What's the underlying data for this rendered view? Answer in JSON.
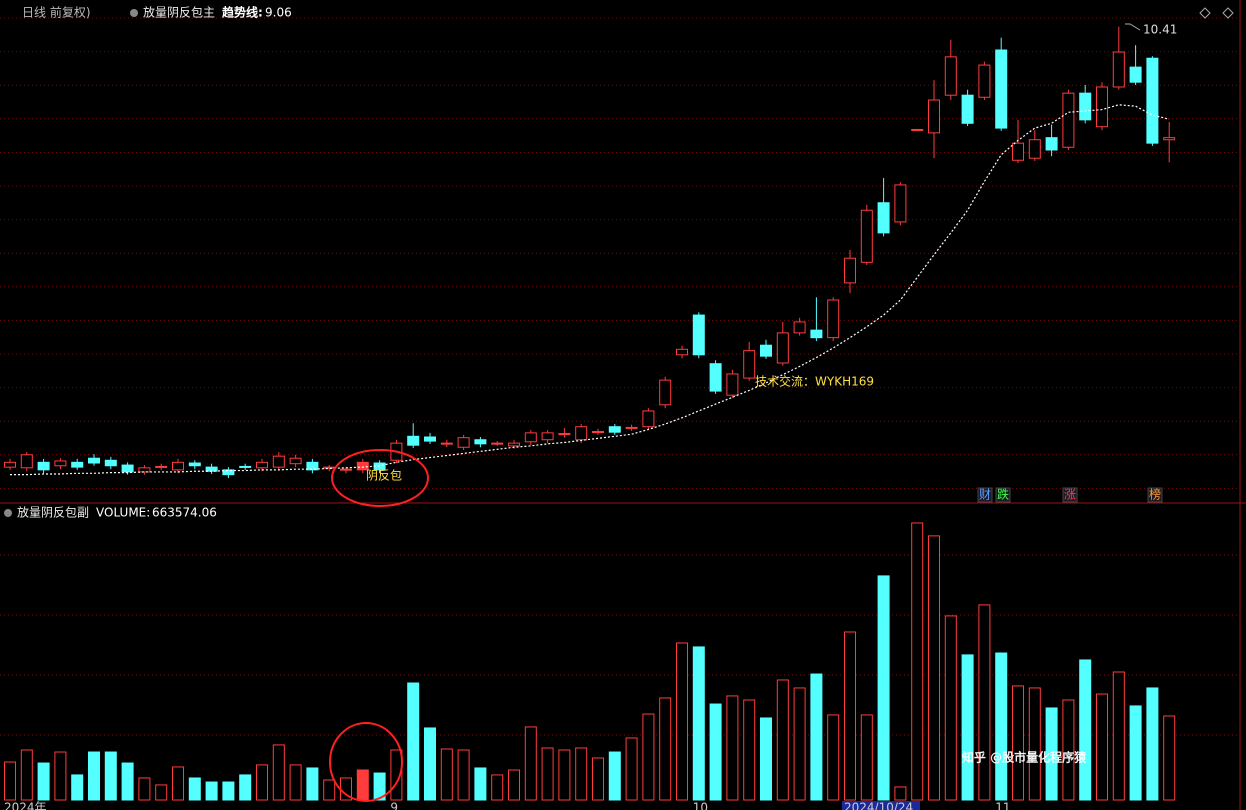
{
  "header": {
    "period": "日线 前复权)",
    "indicator": "放量阴反包主"
  },
  "chart_data": [
    {
      "type": "candlestick",
      "categories": [
        "2024年",
        null,
        null,
        null,
        null,
        null,
        null,
        null,
        null,
        null,
        null,
        null,
        null,
        null,
        null,
        null,
        null,
        null,
        null,
        null,
        null,
        null,
        null,
        "9",
        null,
        null,
        null,
        null,
        null,
        null,
        null,
        null,
        null,
        null,
        null,
        null,
        null,
        null,
        null,
        null,
        null,
        "10",
        null,
        null,
        null,
        null,
        null,
        null,
        null,
        null,
        "2024/10/24",
        null,
        null,
        null,
        null,
        null,
        null,
        null,
        null,
        "11",
        null,
        null,
        null,
        null,
        null,
        null,
        null,
        null,
        null,
        null
      ],
      "open": [
        3.98,
        3.97,
        4.05,
        4.0,
        4.05,
        4.11,
        4.08,
        4.01,
        3.91,
        3.98,
        3.94,
        4.04,
        3.98,
        3.94,
        3.99,
        3.97,
        3.98,
        4.03,
        4.05,
        3.97,
        3.94,
        3.94,
        4.04,
        4.08,
        4.43,
        4.42,
        4.32,
        4.27,
        4.38,
        4.32,
        4.29,
        4.35,
        4.38,
        4.46,
        4.38,
        4.49,
        4.57,
        4.55,
        4.57,
        4.89,
        5.62,
        6.2,
        5.49,
        5.03,
        5.28,
        5.76,
        5.5,
        5.94,
        5.98,
        5.87,
        6.67,
        6.97,
        7.84,
        7.56,
        8.9,
        8.86,
        9.41,
        9.41,
        9.38,
        10.07,
        8.46,
        8.49,
        8.79,
        8.65,
        9.44,
        8.95,
        9.53,
        9.82,
        9.95,
        8.76
      ],
      "high": [
        4.1,
        4.2,
        4.1,
        4.11,
        4.1,
        4.17,
        4.13,
        4.05,
        4.01,
        4.03,
        4.1,
        4.08,
        4.03,
        3.98,
        4.03,
        4.1,
        4.2,
        4.16,
        4.1,
        4.01,
        3.98,
        4.1,
        4.08,
        4.38,
        4.62,
        4.48,
        4.38,
        4.45,
        4.42,
        4.36,
        4.38,
        4.52,
        4.52,
        4.55,
        4.61,
        4.54,
        4.61,
        4.6,
        4.84,
        5.3,
        5.75,
        6.24,
        5.54,
        5.4,
        5.81,
        5.84,
        6.1,
        6.16,
        6.46,
        6.46,
        7.15,
        7.81,
        8.2,
        8.14,
        8.91,
        9.63,
        10.22,
        9.49,
        9.9,
        10.25,
        9.05,
        8.9,
        8.98,
        9.49,
        9.56,
        9.6,
        10.41,
        10.14,
        9.98,
        9.02
      ],
      "low": [
        3.94,
        3.92,
        3.89,
        3.95,
        3.94,
        4.0,
        3.95,
        3.87,
        3.87,
        3.94,
        3.89,
        3.95,
        3.88,
        3.82,
        3.94,
        3.92,
        3.94,
        3.98,
        3.89,
        3.92,
        3.89,
        3.89,
        3.89,
        4.04,
        4.26,
        4.32,
        4.27,
        4.23,
        4.27,
        4.29,
        4.25,
        4.3,
        4.33,
        4.41,
        4.33,
        4.45,
        4.45,
        4.51,
        4.52,
        4.84,
        5.57,
        5.57,
        5.05,
        4.99,
        5.24,
        5.56,
        5.46,
        5.9,
        5.82,
        5.82,
        6.52,
        6.93,
        7.35,
        7.51,
        8.89,
        8.49,
        9.34,
        8.96,
        9.34,
        8.89,
        8.42,
        8.45,
        8.52,
        8.61,
        9.0,
        8.9,
        9.49,
        9.56,
        8.67,
        8.43
      ],
      "close": [
        4.05,
        4.16,
        3.94,
        4.07,
        3.98,
        4.04,
        4.0,
        3.91,
        3.97,
        3.99,
        4.05,
        4.0,
        3.92,
        3.87,
        3.98,
        4.05,
        4.14,
        4.11,
        3.94,
        3.98,
        3.95,
        4.05,
        3.94,
        4.33,
        4.3,
        4.36,
        4.33,
        4.41,
        4.32,
        4.33,
        4.33,
        4.48,
        4.48,
        4.47,
        4.57,
        4.5,
        4.49,
        4.56,
        4.8,
        5.25,
        5.7,
        5.62,
        5.09,
        5.34,
        5.68,
        5.6,
        5.94,
        6.1,
        5.87,
        6.42,
        7.03,
        7.73,
        7.4,
        8.1,
        8.91,
        9.34,
        9.97,
        9.0,
        9.85,
        8.93,
        8.71,
        8.76,
        8.61,
        9.44,
        9.05,
        9.53,
        10.04,
        9.6,
        8.71,
        8.79
      ],
      "up_color": "#ff3c3c",
      "down_color": "#54ffff",
      "series": [
        {
          "name": "趋势线:",
          "color": "#ffffff",
          "values": [
            3.87,
            3.87,
            3.88,
            3.88,
            3.89,
            3.89,
            3.9,
            3.9,
            3.91,
            3.91,
            3.91,
            3.92,
            3.92,
            3.93,
            3.93,
            3.94,
            3.94,
            3.95,
            3.95,
            3.96,
            3.97,
            3.98,
            4.0,
            4.05,
            4.09,
            4.12,
            4.15,
            4.18,
            4.21,
            4.24,
            4.27,
            4.29,
            4.32,
            4.34,
            4.37,
            4.4,
            4.43,
            4.46,
            4.53,
            4.61,
            4.7,
            4.8,
            4.9,
            5.0,
            5.1,
            5.21,
            5.33,
            5.45,
            5.58,
            5.72,
            5.87,
            6.03,
            6.2,
            6.42,
            6.75,
            7.08,
            7.4,
            7.73,
            8.15,
            8.54,
            8.75,
            8.93,
            9.0,
            9.16,
            9.18,
            9.2,
            9.27,
            9.25,
            9.12,
            9.06
          ]
        }
      ],
      "ylim": [
        3.5,
        10.8
      ],
      "signal": {
        "label": "阴反包",
        "index": 21
      },
      "annotation": "技术交流：WYKH169",
      "badges": [
        "财",
        "跌",
        "涨",
        "榜"
      ]
    },
    {
      "type": "bar",
      "title": "放量阴反包副",
      "series": [
        {
          "name": "VOLUME:",
          "values": [
            300000,
            395000,
            292000,
            379000,
            198000,
            379000,
            379000,
            292000,
            174000,
            119000,
            261000,
            174000,
            142000,
            142000,
            198000,
            277000,
            435000,
            277000,
            253000,
            158000,
            174000,
            237000,
            213000,
            395000,
            924000,
            569000,
            403000,
            395000,
            253000,
            198000,
            237000,
            577000,
            411000,
            395000,
            411000,
            332000,
            379000,
            490000,
            679000,
            806000,
            1240000,
            1209000,
            758000,
            822000,
            790000,
            648000,
            948000,
            885000,
            995000,
            672000,
            1327000,
            672000,
            1770000,
            103000,
            2188000,
            2086000,
            1454000,
            1146000,
            1541000,
            1161000,
            901000,
            885000,
            727000,
            790000,
            1106000,
            837000,
            1011000,
            743000,
            885000,
            663574.06
          ]
        }
      ],
      "ylim": [
        0,
        2330000
      ]
    }
  ],
  "watermark": "知乎 @股市量化程序猿"
}
